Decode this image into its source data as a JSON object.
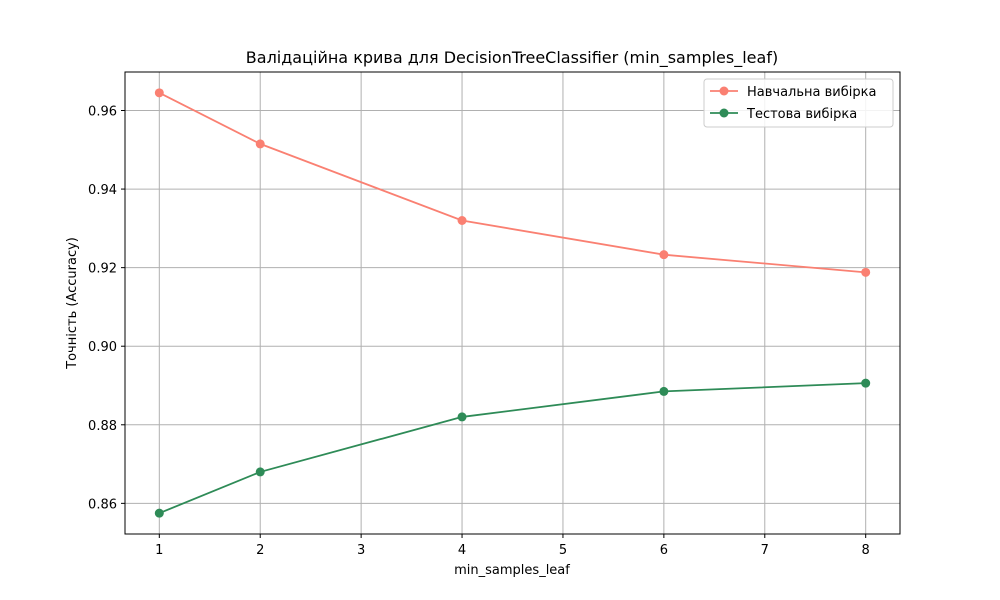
{
  "chart_data": {
    "type": "line",
    "title": "Валідаційна крива для DecisionTreeClassifier (min_samples_leaf)",
    "xlabel": "min_samples_leaf",
    "ylabel": "Точність (Accuracy)",
    "x": [
      1,
      2,
      4,
      6,
      8
    ],
    "xlim": [
      0.66,
      8.34
    ],
    "ylim": [
      0.8522,
      0.9698
    ],
    "xticks": [
      "1",
      "2",
      "3",
      "4",
      "5",
      "6",
      "7",
      "8"
    ],
    "yticks": [
      "0.86",
      "0.88",
      "0.90",
      "0.92",
      "0.94",
      "0.96"
    ],
    "grid": true,
    "legend_position": "top-right",
    "series": [
      {
        "name": "Навчальна вибірка",
        "color": "#fa8072",
        "values": [
          0.9645,
          0.9515,
          0.932,
          0.9233,
          0.9188
        ]
      },
      {
        "name": "Тестова вибірка",
        "color": "#2e8b57",
        "values": [
          0.8575,
          0.868,
          0.882,
          0.8885,
          0.8906
        ]
      }
    ]
  }
}
